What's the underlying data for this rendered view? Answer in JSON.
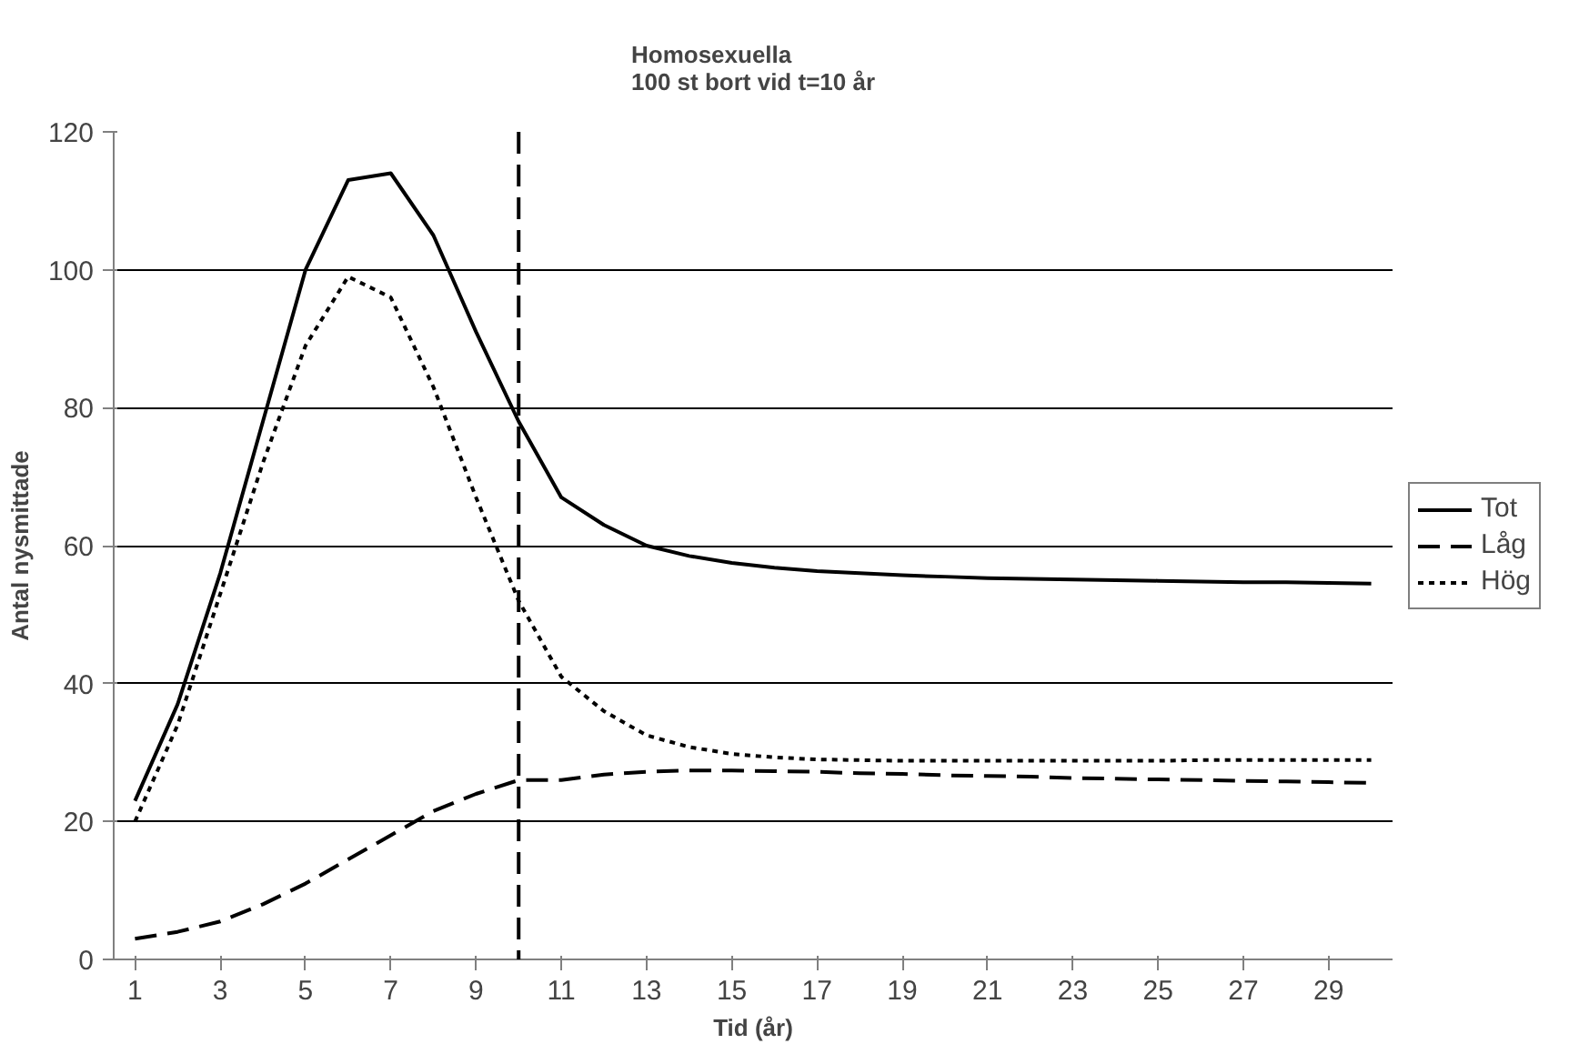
{
  "chart_data": {
    "type": "line",
    "title": "Homosexuella\n100 st bort vid t=10 år",
    "xlabel": "Tid (år)",
    "ylabel": "Antal nysmittade",
    "x": [
      1,
      2,
      3,
      4,
      5,
      6,
      7,
      8,
      9,
      10,
      11,
      12,
      13,
      14,
      15,
      16,
      17,
      18,
      19,
      20,
      21,
      22,
      23,
      24,
      25,
      26,
      27,
      28,
      29,
      30
    ],
    "xlim": [
      0.5,
      30.5
    ],
    "xticks": [
      1,
      3,
      5,
      7,
      9,
      11,
      13,
      15,
      17,
      19,
      21,
      23,
      25,
      27,
      29
    ],
    "ylim": [
      0,
      120
    ],
    "yticks": [
      0,
      20,
      40,
      60,
      80,
      100,
      120
    ],
    "grid": "y",
    "legend": "right",
    "marker": "none",
    "series": [
      {
        "name": "Tot",
        "color": "#000000",
        "line_style": "solid",
        "values": [
          23,
          37,
          56,
          78,
          100,
          113,
          114,
          105,
          91,
          78,
          67,
          63,
          60,
          58.5,
          57.5,
          56.8,
          56.3,
          56,
          55.7,
          55.5,
          55.3,
          55.2,
          55.1,
          55,
          54.9,
          54.8,
          54.7,
          54.7,
          54.6,
          54.5
        ]
      },
      {
        "name": "Låg",
        "color": "#000000",
        "line_style": "dashed",
        "values": [
          3,
          4,
          5.5,
          8,
          11,
          14.5,
          18,
          21.5,
          24,
          26,
          26,
          26.8,
          27.2,
          27.4,
          27.4,
          27.3,
          27.2,
          27,
          26.9,
          26.7,
          26.6,
          26.5,
          26.3,
          26.2,
          26.1,
          26,
          25.9,
          25.8,
          25.7,
          25.6
        ]
      },
      {
        "name": "Hög",
        "color": "#000000",
        "line_style": "dotted",
        "values": [
          20,
          34,
          53,
          72,
          89,
          99,
          96,
          83,
          67,
          52,
          41,
          36,
          32.5,
          30.8,
          29.8,
          29.3,
          29,
          28.9,
          28.8,
          28.8,
          28.8,
          28.8,
          28.8,
          28.8,
          28.8,
          28.9,
          28.9,
          28.9,
          28.9,
          28.9
        ]
      }
    ],
    "ref_lines": [
      {
        "axis": "x",
        "value": 10,
        "color": "#000000",
        "line_style": "dashed"
      }
    ]
  }
}
